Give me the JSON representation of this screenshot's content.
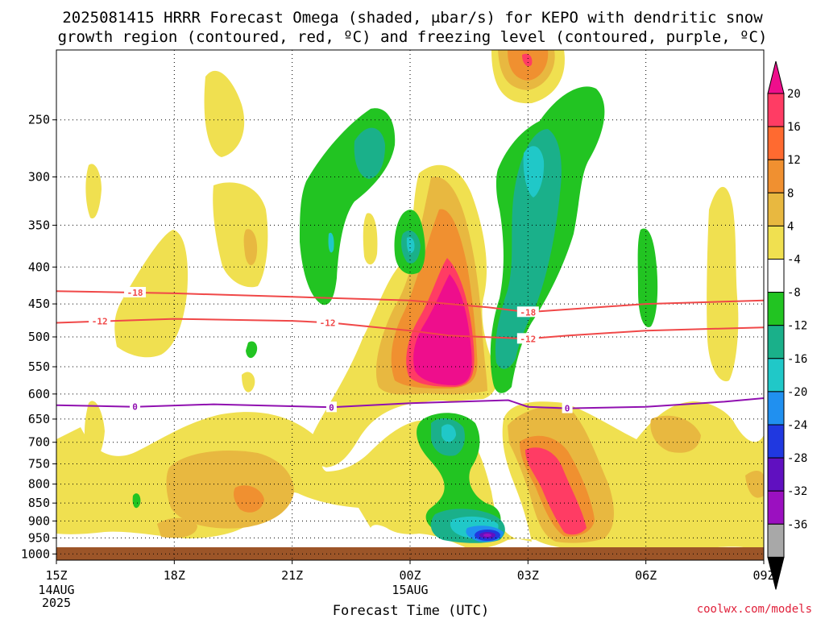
{
  "chart_data": {
    "type": "contour",
    "title_line1": "2025081415 HRRR Forecast Omega (shaded, μbar/s) for KEPO with dendritic snow",
    "title_line2": "growth region (contoured, red, ºC) and freezing level (contoured, purple, ºC)",
    "xlabel": "Forecast Time (UTC)",
    "x_ticks": [
      {
        "label": "15Z",
        "sub1": "14AUG",
        "sub2": "2025",
        "hour": 0
      },
      {
        "label": "18Z",
        "sub1": "",
        "sub2": "",
        "hour": 3
      },
      {
        "label": "21Z",
        "sub1": "",
        "sub2": "",
        "hour": 6
      },
      {
        "label": "00Z",
        "sub1": "15AUG",
        "sub2": "",
        "hour": 9
      },
      {
        "label": "03Z",
        "sub1": "",
        "sub2": "",
        "hour": 12
      },
      {
        "label": "06Z",
        "sub1": "",
        "sub2": "",
        "hour": 15
      },
      {
        "label": "09Z",
        "sub1": "",
        "sub2": "",
        "hour": 18
      }
    ],
    "xlim_hours": [
      0,
      18
    ],
    "y_ticks": [
      "250",
      "300",
      "350",
      "400",
      "450",
      "500",
      "550",
      "600",
      "650",
      "700",
      "750",
      "800",
      "850",
      "900",
      "950",
      "1000"
    ],
    "ylim": [
      1020,
      200
    ],
    "y_scale": "log-pressure",
    "grid": true,
    "contours": [
      {
        "name": "-18",
        "color": "#f04848",
        "label_positions_hours": [
          2.0,
          12.0
        ],
        "points": [
          [
            0,
            432
          ],
          [
            3,
            435
          ],
          [
            6,
            440
          ],
          [
            9,
            445
          ],
          [
            11,
            455
          ],
          [
            12,
            462
          ],
          [
            13,
            458
          ],
          [
            15,
            450
          ],
          [
            18,
            445
          ]
        ]
      },
      {
        "name": "-12",
        "color": "#f04848",
        "label_positions_hours": [
          1.1,
          6.9,
          12.0
        ],
        "points": [
          [
            0,
            478
          ],
          [
            3,
            472
          ],
          [
            6,
            475
          ],
          [
            7,
            478
          ],
          [
            9,
            490
          ],
          [
            10,
            498
          ],
          [
            12,
            503
          ],
          [
            13,
            498
          ],
          [
            15,
            490
          ],
          [
            18,
            485
          ]
        ]
      },
      {
        "name": "0",
        "color": "#9010b0",
        "label_positions_hours": [
          2.0,
          7.0,
          13.0
        ],
        "points": [
          [
            0,
            622
          ],
          [
            2,
            625
          ],
          [
            4,
            620
          ],
          [
            7,
            626
          ],
          [
            9,
            618
          ],
          [
            11.5,
            612
          ],
          [
            12,
            625
          ],
          [
            13,
            628
          ],
          [
            15,
            625
          ],
          [
            17,
            615
          ],
          [
            18,
            608
          ]
        ]
      }
    ],
    "colorbar": {
      "levels": [
        20,
        16,
        12,
        8,
        4,
        -4,
        -8,
        -12,
        -16,
        -20,
        -24,
        -28,
        -32,
        -36
      ],
      "colors": [
        "#ff3c64",
        "#ff6a30",
        "#f09030",
        "#e8b840",
        "#f0e050",
        "#ffffff",
        "#22c422",
        "#1ab08a",
        "#20c8c8",
        "#2090f0",
        "#2038e0",
        "#6010c0",
        "#9b10c0",
        "#a8a8a8"
      ],
      "top_color": "#ee0e8c",
      "bottom_color": "#000000"
    },
    "ground_color": "#9c5528",
    "credit": "coolwx.com/models"
  }
}
